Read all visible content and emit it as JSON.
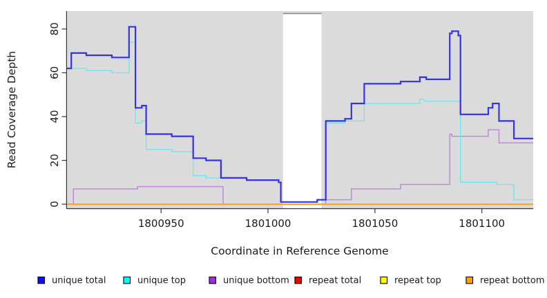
{
  "figure": {
    "title": "",
    "xlabel": "Coordinate in Reference Genome",
    "ylabel": "Read Coverage Depth"
  },
  "chart_data": {
    "type": "line",
    "subtype": "step",
    "title": "",
    "xlabel": "Coordinate in Reference Genome",
    "ylabel": "Read Coverage Depth",
    "grid": false,
    "legend_position": "bottom",
    "plot_bg_color": "#DBDBDB",
    "gap_border_color": "#8A8A8A",
    "axis_color": "#333333",
    "x_range": [
      1800906,
      1801124
    ],
    "y_ticks": [
      0,
      20,
      40,
      60,
      80
    ],
    "y_tick_labels": [
      "0",
      "20",
      "40",
      "60",
      "80"
    ],
    "x_ticks": [
      1800950,
      1801000,
      1801050,
      1801100
    ],
    "x_tick_labels": [
      "1800950",
      "1801000",
      "1801050",
      "1801100"
    ],
    "missing_data_gap": {
      "x_from": 1801007,
      "x_to": 1801025
    },
    "draw_order": [
      2,
      3,
      4,
      5,
      1,
      0
    ],
    "series": [
      {
        "name": "unique total",
        "line_color": "#3232E6",
        "legend_color": "#0F0FFF",
        "line_width": 2.2,
        "points": [
          [
            1800906,
            62
          ],
          [
            1800908,
            69
          ],
          [
            1800915,
            68
          ],
          [
            1800927,
            67
          ],
          [
            1800935,
            81
          ],
          [
            1800938,
            44
          ],
          [
            1800941,
            45
          ],
          [
            1800943,
            32
          ],
          [
            1800955,
            31
          ],
          [
            1800965,
            21
          ],
          [
            1800971,
            20
          ],
          [
            1800978,
            12
          ],
          [
            1800990,
            11
          ],
          [
            1801005,
            10
          ],
          [
            1801006,
            1
          ],
          [
            1801023,
            2
          ],
          [
            1801027,
            38
          ],
          [
            1801036,
            39
          ],
          [
            1801039,
            46
          ],
          [
            1801045,
            55
          ],
          [
            1801062,
            56
          ],
          [
            1801071,
            58
          ],
          [
            1801074,
            57
          ],
          [
            1801085,
            78
          ],
          [
            1801086,
            79
          ],
          [
            1801089,
            77
          ],
          [
            1801090,
            41
          ],
          [
            1801103,
            44
          ],
          [
            1801105,
            46
          ],
          [
            1801108,
            38
          ],
          [
            1801115,
            30
          ],
          [
            1801124,
            30
          ]
        ]
      },
      {
        "name": "unique top",
        "line_color": "#66E8EE",
        "legend_color": "#00FFFF",
        "line_width": 1.3,
        "points": [
          [
            1800906,
            62
          ],
          [
            1800915,
            61
          ],
          [
            1800927,
            60
          ],
          [
            1800935,
            74
          ],
          [
            1800938,
            37
          ],
          [
            1800941,
            38
          ],
          [
            1800943,
            25
          ],
          [
            1800955,
            24
          ],
          [
            1800965,
            13
          ],
          [
            1800971,
            12
          ],
          [
            1800978,
            12
          ],
          [
            1800990,
            11
          ],
          [
            1801005,
            10
          ],
          [
            1801006,
            1
          ],
          [
            1801023,
            2
          ],
          [
            1801027,
            37
          ],
          [
            1801036,
            38
          ],
          [
            1801045,
            46
          ],
          [
            1801071,
            48
          ],
          [
            1801073,
            47
          ],
          [
            1801090,
            10
          ],
          [
            1801107,
            9
          ],
          [
            1801115,
            2
          ],
          [
            1801124,
            2
          ]
        ]
      },
      {
        "name": "unique bottom",
        "line_color": "#BE82DC",
        "legend_color": "#9B30D9",
        "line_width": 1.4,
        "points": [
          [
            1800906,
            0
          ],
          [
            1800909,
            7
          ],
          [
            1800939,
            8
          ],
          [
            1800979,
            0
          ],
          [
            1801007,
            0
          ],
          [
            1801027,
            2
          ],
          [
            1801039,
            7
          ],
          [
            1801062,
            9
          ],
          [
            1801085,
            32
          ],
          [
            1801086,
            31
          ],
          [
            1801103,
            34
          ],
          [
            1801108,
            28
          ],
          [
            1801124,
            28
          ]
        ]
      },
      {
        "name": "repeat total",
        "line_color": "#E02020",
        "legend_color": "#EE0000",
        "line_width": 1.3,
        "points": [
          [
            1800906,
            0
          ],
          [
            1801124,
            0
          ]
        ]
      },
      {
        "name": "repeat top",
        "line_color": "#F5E800",
        "legend_color": "#FFFF00",
        "line_width": 1.3,
        "points": [
          [
            1800906,
            0
          ],
          [
            1801124,
            0
          ]
        ]
      },
      {
        "name": "repeat bottom",
        "line_color": "#FFA41E",
        "legend_color": "#FFA500",
        "line_width": 2,
        "points": [
          [
            1800906,
            0
          ],
          [
            1801124,
            0
          ]
        ]
      }
    ]
  }
}
